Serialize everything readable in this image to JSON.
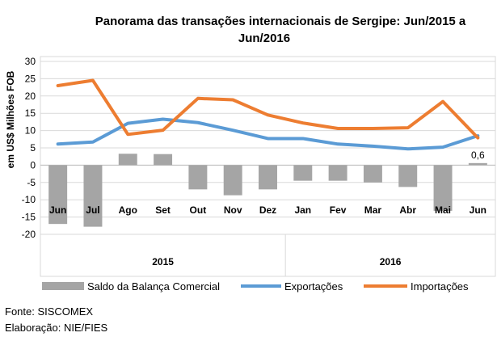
{
  "chart_data": {
    "type": "bar+line",
    "title_line1": "Panorama das transações internacionais de Sergipe: Jun/2015 a",
    "title_line2": "Jun/2016",
    "ylabel": "em US$ Milhões FOB",
    "ylim": [
      -20,
      30
    ],
    "yticks": [
      30,
      25,
      20,
      15,
      10,
      5,
      0,
      -5,
      -10,
      -15,
      -20
    ],
    "categories": [
      "Jun",
      "Jul",
      "Ago",
      "Set",
      "Out",
      "Nov",
      "Dez",
      "Jan",
      "Fev",
      "Mar",
      "Abr",
      "Mai",
      "Jun"
    ],
    "years": [
      {
        "label": "2015",
        "from": 0,
        "to": 6
      },
      {
        "label": "2016",
        "from": 7,
        "to": 12
      }
    ],
    "series": [
      {
        "name": "Saldo da Balança Comercial",
        "type": "bar",
        "color": "#a5a5a5",
        "values": [
          -17,
          -17.8,
          3.3,
          3.2,
          -7,
          -8.7,
          -7,
          -4.5,
          -4.5,
          -5,
          -6.3,
          -13.2,
          0.6
        ]
      },
      {
        "name": "Exportações",
        "type": "line",
        "color": "#5b9bd5",
        "values": [
          6.1,
          6.7,
          12.1,
          13.3,
          12.3,
          10.1,
          7.7,
          7.7,
          6.1,
          5.5,
          4.7,
          5.2,
          8.5
        ]
      },
      {
        "name": "Importações",
        "type": "line",
        "color": "#ed7d31",
        "values": [
          23,
          24.5,
          8.9,
          10.1,
          19.3,
          18.9,
          14.5,
          12.2,
          10.6,
          10.6,
          10.8,
          18.4,
          7.9
        ]
      }
    ],
    "annotations": [
      {
        "index": 12,
        "text": "0,6"
      }
    ]
  },
  "footer": {
    "source": "Fonte: SISCOMEX",
    "credit": "Elaboração: NIE/FIES"
  }
}
